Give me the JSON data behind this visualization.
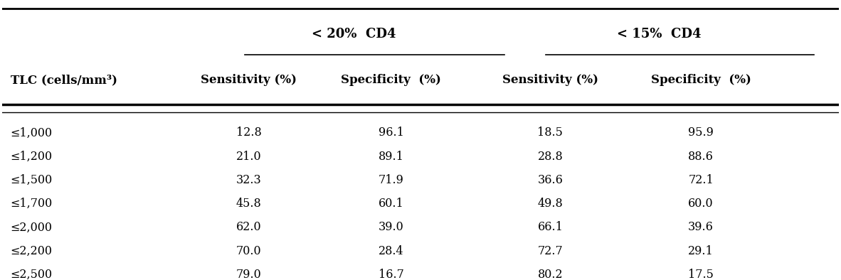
{
  "group_header_1": "< 20%  CD4",
  "group_header_2": "< 15%  CD4",
  "col_headers": [
    "TLC (cells/mm³)",
    "Sensitivity (%)",
    "Specificity  (%)",
    "Sensitivity (%)",
    "Specificity  (%)"
  ],
  "rows": [
    [
      "≤1,000",
      "12.8",
      "96.1",
      "18.5",
      "95.9"
    ],
    [
      "≤1,200",
      "21.0",
      "89.1",
      "28.8",
      "88.6"
    ],
    [
      "≤1,500",
      "32.3",
      "71.9",
      "36.6",
      "72.1"
    ],
    [
      "≤1,700",
      "45.8",
      "60.1",
      "49.8",
      "60.0"
    ],
    [
      "≤2,000",
      "62.0",
      "39.0",
      "66.1",
      "39.6"
    ],
    [
      "≤2,200",
      "70.0",
      "28.4",
      "72.7",
      "29.1"
    ],
    [
      "≤2,500",
      "79.0",
      "16.7",
      "80.2",
      "17.5"
    ]
  ],
  "background_color": "#ffffff",
  "text_color": "#000000",
  "font_size": 11.5,
  "header_font_size": 12.0,
  "group_header_font_size": 13.0
}
